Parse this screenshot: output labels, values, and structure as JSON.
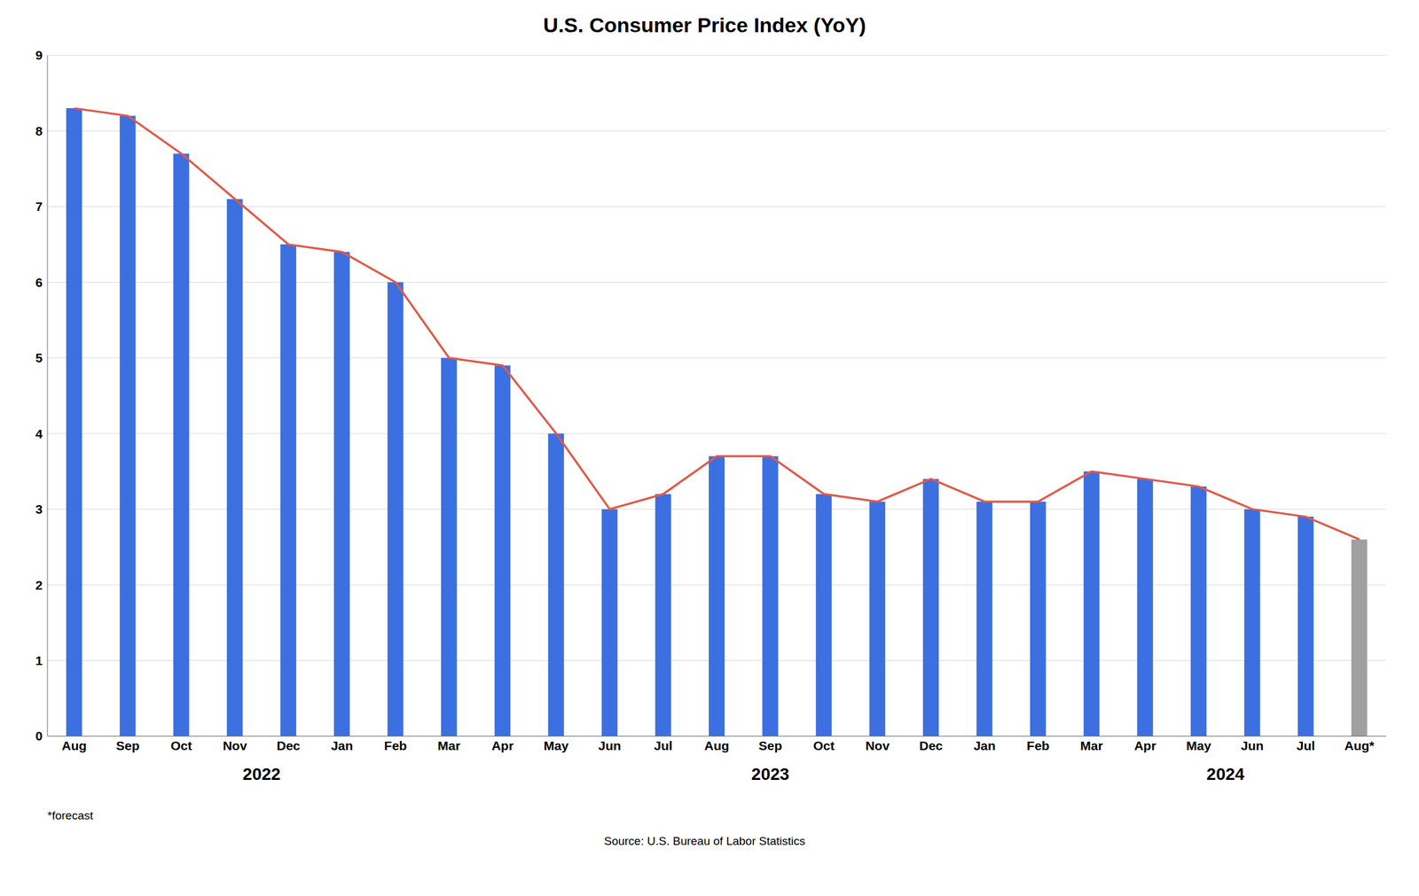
{
  "chart_data": {
    "type": "bar",
    "title": "U.S. Consumer Price Index (YoY)",
    "categories": [
      "Aug",
      "Sep",
      "Oct",
      "Nov",
      "Dec",
      "Jan",
      "Feb",
      "Mar",
      "Apr",
      "May",
      "Jun",
      "Jul",
      "Aug",
      "Sep",
      "Oct",
      "Nov",
      "Dec",
      "Jan",
      "Feb",
      "Mar",
      "Apr",
      "May",
      "Jun",
      "Jul",
      "Aug*"
    ],
    "series": [
      {
        "type": "bar",
        "colors": [
          "#3c6fe0",
          "#3c6fe0",
          "#3c6fe0",
          "#3c6fe0",
          "#3c6fe0",
          "#3c6fe0",
          "#3c6fe0",
          "#3c6fe0",
          "#3c6fe0",
          "#3c6fe0",
          "#3c6fe0",
          "#3c6fe0",
          "#3c6fe0",
          "#3c6fe0",
          "#3c6fe0",
          "#3c6fe0",
          "#3c6fe0",
          "#3c6fe0",
          "#3c6fe0",
          "#3c6fe0",
          "#3c6fe0",
          "#3c6fe0",
          "#3c6fe0",
          "#3c6fe0",
          "#a0a0a0"
        ],
        "values": [
          8.3,
          8.2,
          7.7,
          7.1,
          6.5,
          6.4,
          6.0,
          5.0,
          4.9,
          4.0,
          3.0,
          3.2,
          3.7,
          3.7,
          3.2,
          3.1,
          3.4,
          3.1,
          3.1,
          3.5,
          3.4,
          3.3,
          3.0,
          2.9,
          2.6
        ]
      },
      {
        "type": "line",
        "color": "#e05a4a",
        "values": [
          8.3,
          8.2,
          7.7,
          7.1,
          6.5,
          6.4,
          6.0,
          5.0,
          4.9,
          4.0,
          3.0,
          3.2,
          3.7,
          3.7,
          3.2,
          3.1,
          3.4,
          3.1,
          3.1,
          3.5,
          3.4,
          3.3,
          3.0,
          2.9,
          2.6
        ]
      }
    ],
    "ylim": [
      0,
      9
    ],
    "yticks": [
      0,
      1,
      2,
      3,
      4,
      5,
      6,
      7,
      8,
      9
    ],
    "grid": true,
    "annotations": [
      {
        "text": "2022",
        "x": 3.5
      },
      {
        "text": "2023",
        "x": 13.0
      },
      {
        "text": "2024",
        "x": 21.5
      }
    ],
    "footnote": "*forecast",
    "source": "Source: U.S. Bureau of Labor Statistics"
  }
}
